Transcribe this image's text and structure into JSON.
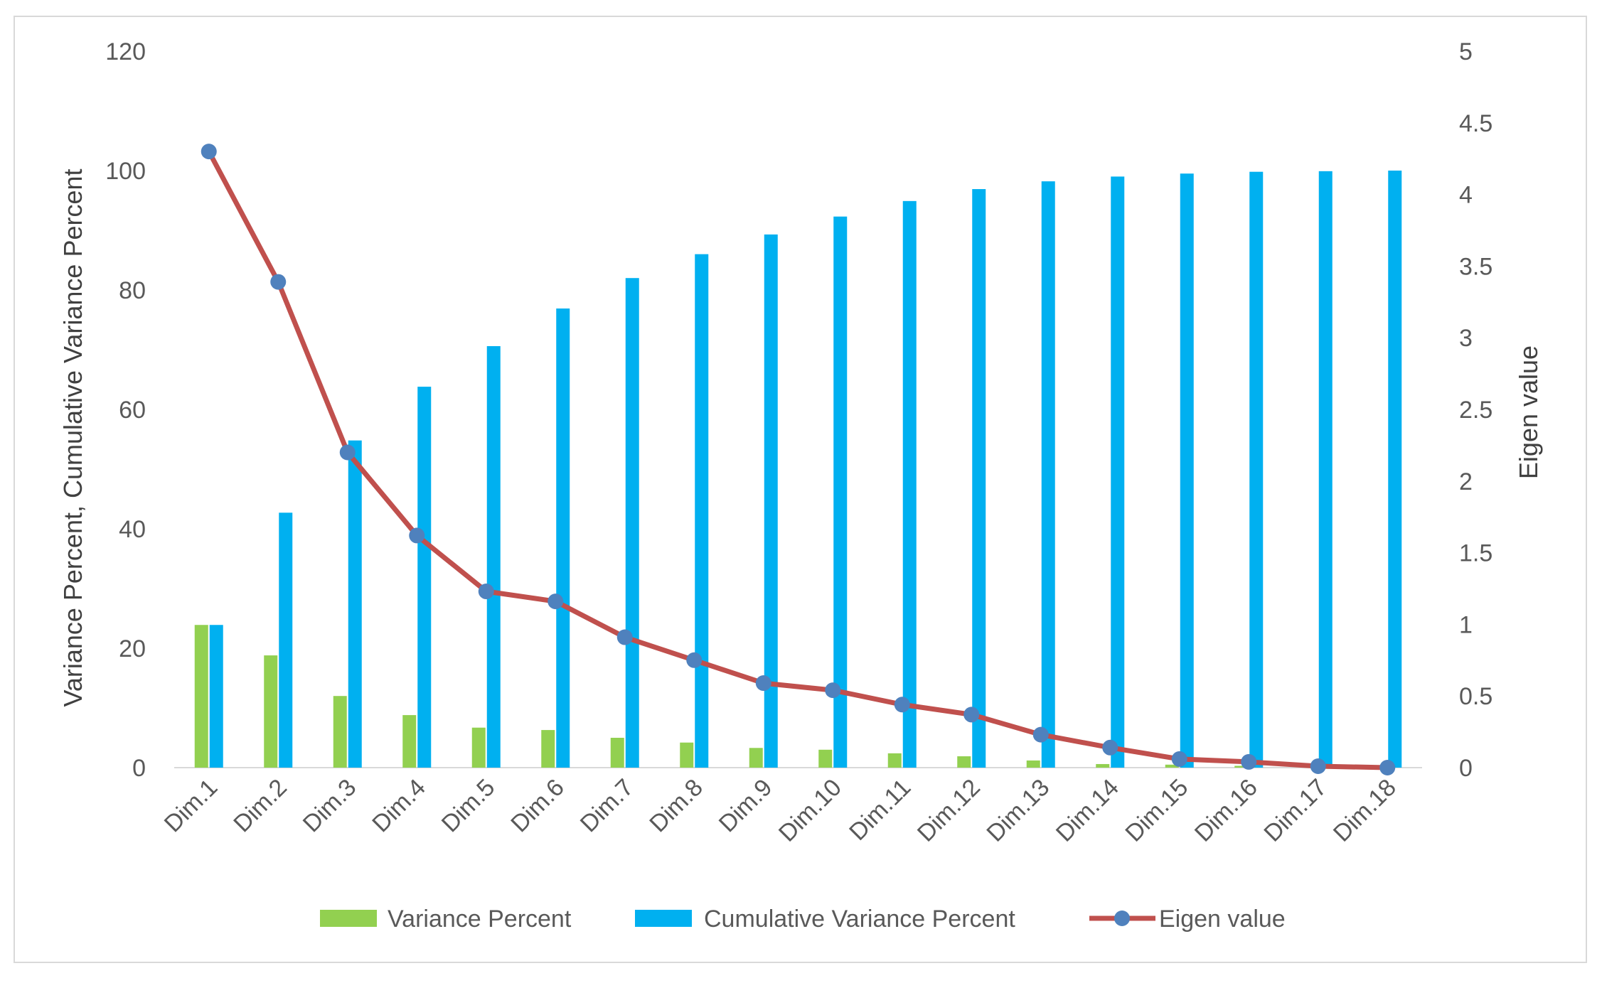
{
  "chart_data": {
    "type": "bar",
    "title": "",
    "categories": [
      "Dim.1",
      "Dim.2",
      "Dim.3",
      "Dim.4",
      "Dim.5",
      "Dim.6",
      "Dim.7",
      "Dim.8",
      "Dim.9",
      "Dim.10",
      "Dim.11",
      "Dim.12",
      "Dim.13",
      "Dim.14",
      "Dim.15",
      "Dim.16",
      "Dim.17",
      "Dim.18"
    ],
    "series": [
      {
        "name": "Variance Percent",
        "kind": "bar",
        "axis": "left",
        "color": "#92d050",
        "values": [
          23.9,
          18.8,
          12.0,
          8.8,
          6.7,
          6.3,
          5.0,
          4.2,
          3.3,
          3.0,
          2.4,
          1.9,
          1.2,
          0.6,
          0.5,
          0.3,
          0.1,
          0.0
        ]
      },
      {
        "name": "Cumulative Variance Percent",
        "kind": "bar",
        "axis": "left",
        "color": "#00b0f0",
        "values": [
          23.9,
          42.7,
          54.8,
          63.8,
          70.6,
          76.9,
          82.0,
          86.0,
          89.3,
          92.3,
          94.9,
          96.9,
          98.2,
          99.0,
          99.5,
          99.8,
          99.9,
          100.0
        ]
      },
      {
        "name": "Eigen value",
        "kind": "line",
        "axis": "right",
        "color": "#c0504d",
        "marker_color": "#4f81bd",
        "values": [
          4.3,
          3.39,
          2.2,
          1.62,
          1.23,
          1.16,
          0.91,
          0.75,
          0.59,
          0.54,
          0.44,
          0.37,
          0.23,
          0.14,
          0.06,
          0.04,
          0.01,
          0.0
        ]
      }
    ],
    "ylabel": "Variance Percent, Cumulative Variance Percent",
    "ylim": [
      0,
      120
    ],
    "yticks": [
      "0",
      "20",
      "40",
      "60",
      "80",
      "100",
      "120"
    ],
    "y2label": "Eigen value",
    "y2lim": [
      0,
      5
    ],
    "y2ticks": [
      "0",
      "0.5",
      "1",
      "1.5",
      "2",
      "2.5",
      "3",
      "3.5",
      "4",
      "4.5",
      "5"
    ],
    "grid": false,
    "legend": "bottom"
  }
}
